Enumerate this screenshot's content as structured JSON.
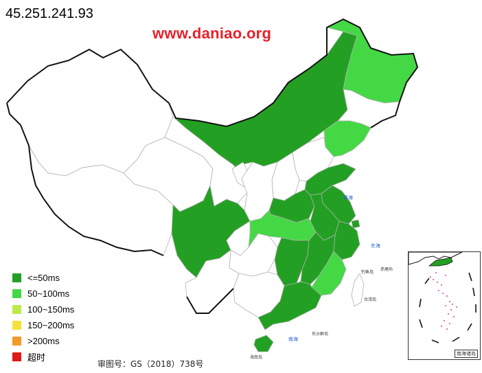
{
  "header": {
    "ip": "45.251.241.93",
    "site": "www.daniao.org"
  },
  "colors": {
    "le50": "#23a023",
    "r50_100": "#45d845",
    "r100_150": "#bdea4b",
    "r150_200": "#f2e23a",
    "gt200": "#f39a2a",
    "timeout": "#e01818",
    "none": "#ffffff",
    "border": "#b0b0b0",
    "outline": "#111111"
  },
  "legend": {
    "items": [
      {
        "label": "<=50ms",
        "color": "#23a023"
      },
      {
        "label": "50~100ms",
        "color": "#45d845"
      },
      {
        "label": "100~150ms",
        "color": "#bdea4b"
      },
      {
        "label": "150~200ms",
        "color": "#f2e23a"
      },
      {
        "label": ">200ms",
        "color": "#f39a2a"
      },
      {
        "label": "超时",
        "color": "#e01818"
      }
    ]
  },
  "footer": {
    "approval": "审图号：GS（2018）738号"
  },
  "inset": {
    "title": "南海诸岛"
  },
  "sea_labels": {
    "huanghai": "黄海",
    "donghai": "东海",
    "nanhai": "南海",
    "taiwan": "台湾岛",
    "diaoyu": "钓鱼岛",
    "chiwei": "赤尾屿",
    "hainan": "海南岛",
    "dongsha": "东沙群岛"
  },
  "map_data": {
    "provinces": [
      {
        "name": "Heilongjiang",
        "bucket": "r50_100"
      },
      {
        "name": "Jilin",
        "bucket": "none"
      },
      {
        "name": "Liaoning",
        "bucket": "r50_100"
      },
      {
        "name": "Inner Mongolia",
        "bucket": "le50"
      },
      {
        "name": "Beijing",
        "bucket": "le50"
      },
      {
        "name": "Tianjin",
        "bucket": "none"
      },
      {
        "name": "Hebei",
        "bucket": "none"
      },
      {
        "name": "Shandong",
        "bucket": "le50"
      },
      {
        "name": "Shanxi",
        "bucket": "none"
      },
      {
        "name": "Henan",
        "bucket": "le50"
      },
      {
        "name": "Jiangsu",
        "bucket": "le50"
      },
      {
        "name": "Anhui",
        "bucket": "le50"
      },
      {
        "name": "Shanghai",
        "bucket": "le50"
      },
      {
        "name": "Zhejiang",
        "bucket": "le50"
      },
      {
        "name": "Hubei",
        "bucket": "r50_100"
      },
      {
        "name": "Sichuan",
        "bucket": "le50"
      },
      {
        "name": "Chongqing",
        "bucket": "none"
      },
      {
        "name": "Hunan",
        "bucket": "le50"
      },
      {
        "name": "Jiangxi",
        "bucket": "le50"
      },
      {
        "name": "Fujian",
        "bucket": "r50_100"
      },
      {
        "name": "Guangdong",
        "bucket": "le50"
      },
      {
        "name": "Guangxi",
        "bucket": "none"
      },
      {
        "name": "Hainan",
        "bucket": "le50"
      },
      {
        "name": "Guizhou",
        "bucket": "none"
      },
      {
        "name": "Yunnan",
        "bucket": "none"
      },
      {
        "name": "Xinjiang",
        "bucket": "none"
      },
      {
        "name": "Tibet",
        "bucket": "none"
      },
      {
        "name": "Qinghai",
        "bucket": "none"
      },
      {
        "name": "Gansu",
        "bucket": "none"
      },
      {
        "name": "Ningxia",
        "bucket": "none"
      },
      {
        "name": "Shaanxi",
        "bucket": "none"
      },
      {
        "name": "Taiwan",
        "bucket": "none"
      }
    ]
  }
}
